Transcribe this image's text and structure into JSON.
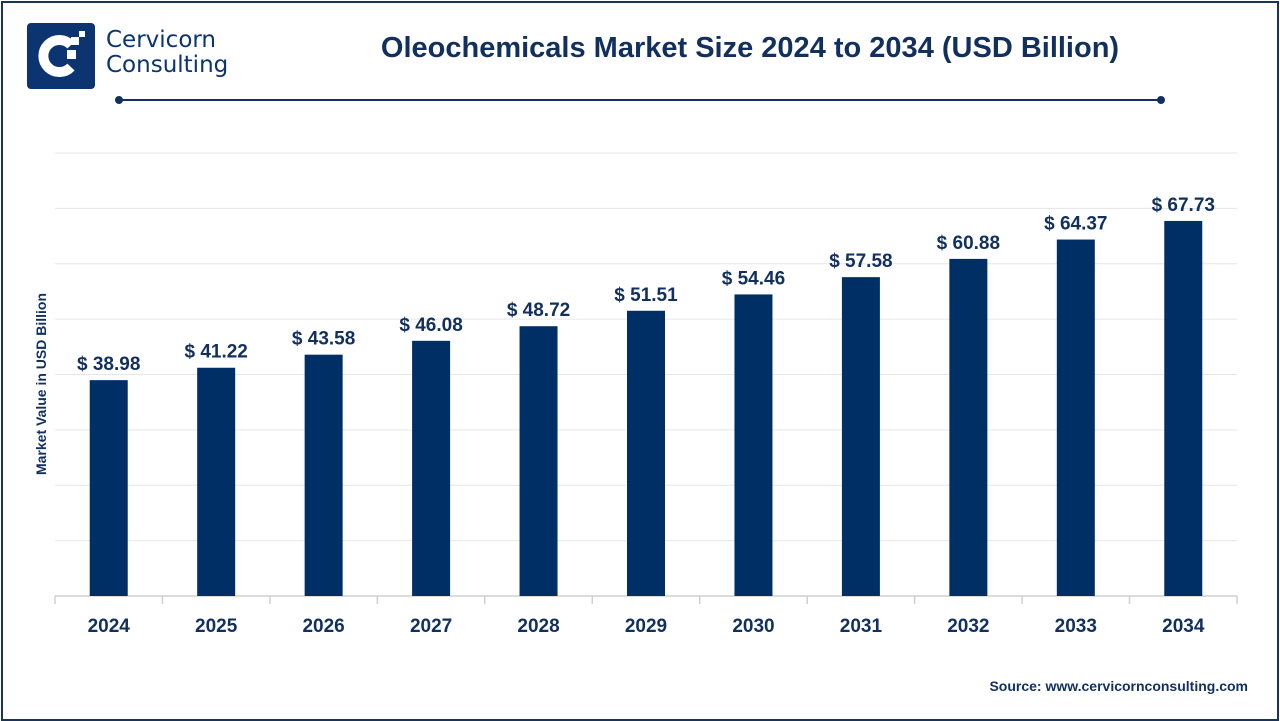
{
  "brand": {
    "line1": "Cervicorn",
    "line2": "Consulting"
  },
  "source": "Source: www.cervicornconsulting.com",
  "colors": {
    "bar": "#002f66",
    "text": "#12305e",
    "grid": "#e6e6e6"
  },
  "chart_data": {
    "type": "bar",
    "title": "Oleochemicals Market Size 2024 to 2034 (USD Billion)",
    "xlabel": "",
    "ylabel": "Market Value in USD Billion",
    "categories": [
      "2024",
      "2025",
      "2026",
      "2027",
      "2028",
      "2029",
      "2030",
      "2031",
      "2032",
      "2033",
      "2034"
    ],
    "values": [
      38.98,
      41.22,
      43.58,
      46.08,
      48.72,
      51.51,
      54.46,
      57.58,
      60.88,
      64.37,
      67.73
    ],
    "data_labels": [
      "$ 38.98",
      "$ 41.22",
      "$ 43.58",
      "$ 46.08",
      "$ 48.72",
      "$ 51.51",
      "$ 54.46",
      "$ 57.58",
      "$ 60.88",
      "$ 64.37",
      "$ 67.73"
    ],
    "ylim": [
      0,
      80
    ],
    "grid": true,
    "y_tick_labels_shown": false
  }
}
